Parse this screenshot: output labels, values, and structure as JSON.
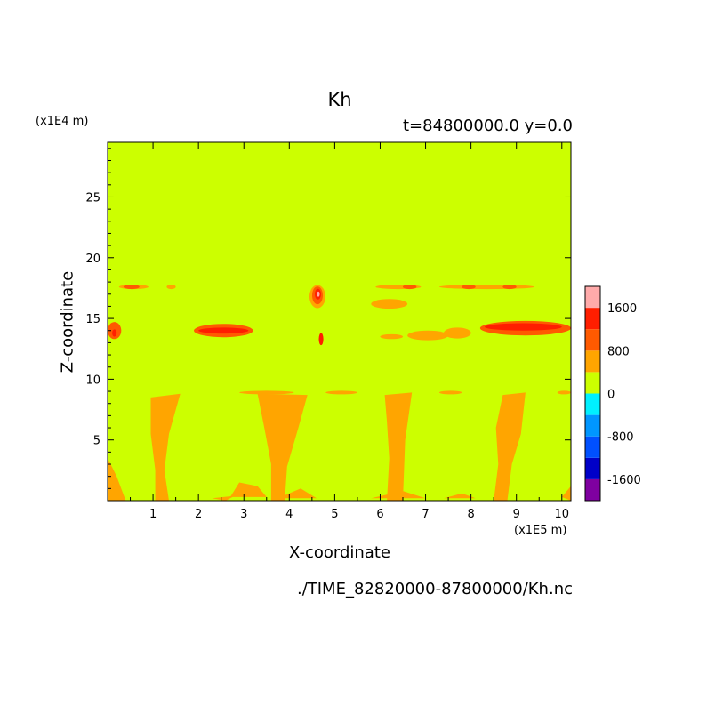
{
  "chart_data": {
    "type": "heatmap",
    "title": "Kh",
    "subtitle": "t=84800000.0 y=0.0",
    "xlabel": "X-coordinate",
    "ylabel": "Z-coordinate",
    "x_unit": "(x1E5 m)",
    "y_unit": "(x1E4 m)",
    "xlim": [
      0,
      10.2
    ],
    "ylim": [
      0,
      29.5
    ],
    "x_ticks": [
      1,
      2,
      3,
      4,
      5,
      6,
      7,
      8,
      9,
      10
    ],
    "y_ticks": [
      5,
      10,
      15,
      20,
      25
    ],
    "colorbar": {
      "levels": [
        -2000,
        -1600,
        -1200,
        -800,
        -400,
        0,
        400,
        800,
        1200,
        1600,
        2000
      ],
      "colors": [
        "#7f00a0",
        "#0000c8",
        "#0050ff",
        "#0096ff",
        "#00f0ff",
        "#ccff00",
        "#ffa500",
        "#ff5a00",
        "#ff1e00",
        "#ffaaaa"
      ],
      "tick_labels": [
        "-1600",
        "-800",
        "0",
        "800",
        "1600"
      ]
    },
    "background_level": "0 to 400",
    "features": [
      {
        "x": [
          0,
          10.2
        ],
        "z": [
          0,
          8.5
        ],
        "description": "plume-like 400-800 contours rising from surface in lower layer"
      },
      {
        "x": [
          0,
          10.2
        ],
        "z": [
          13,
          15
        ],
        "description": "band of 400-1600 values near z=14"
      },
      {
        "x": [
          0,
          9.5
        ],
        "z": [
          16.5,
          17.8
        ],
        "description": "thin 400-1200 streaks near z=17.5"
      },
      {
        "x": [
          4.5,
          4.8
        ],
        "z": [
          13,
          17.8
        ],
        "description": "localized maximum up to 2000 near x=4.6"
      }
    ]
  },
  "footer": "./TIME_82820000-87800000/Kh.nc"
}
